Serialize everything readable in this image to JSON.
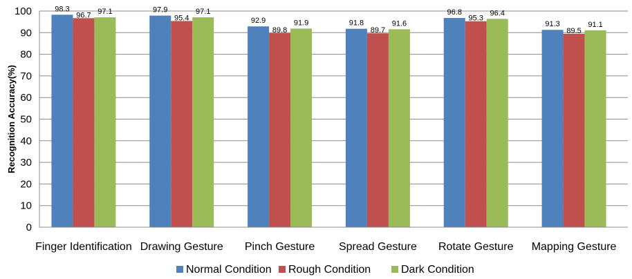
{
  "chart_data": {
    "type": "bar",
    "title": "",
    "xlabel": "",
    "ylabel": "Recognition Accuracy(%)",
    "ylim": [
      0,
      100
    ],
    "yticks": [
      0,
      10,
      20,
      30,
      40,
      50,
      60,
      70,
      80,
      90,
      100
    ],
    "grid": true,
    "legend_position": "bottom",
    "categories": [
      "Finger Identification",
      "Drawing Gesture",
      "Pinch Gesture",
      "Spread Gesture",
      "Rotate Gesture",
      "Mapping Gesture"
    ],
    "series": [
      {
        "name": "Normal Condition",
        "color": "#4f81bd",
        "values": [
          98.3,
          97.9,
          92.9,
          91.8,
          96.8,
          91.3
        ]
      },
      {
        "name": "Rough Condition",
        "color": "#c0504d",
        "values": [
          96.7,
          95.4,
          89.8,
          89.7,
          95.3,
          89.5
        ]
      },
      {
        "name": "Dark Condition",
        "color": "#9bbb59",
        "values": [
          97.1,
          97.1,
          91.9,
          91.6,
          96.4,
          91.1
        ]
      }
    ]
  }
}
